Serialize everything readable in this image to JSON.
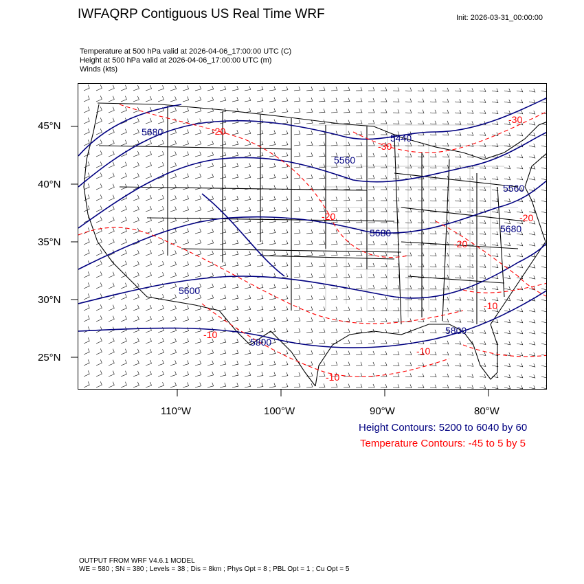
{
  "header": {
    "title": "IWFAQRP Contiguous US Real Time WRF",
    "init": "Init: 2026-03-31_00:00:00"
  },
  "fields": {
    "line1": "Temperature at 500 hPa valid at 2026-04-06_17:00:00 UTC   (C)",
    "line2": "Height at 500 hPa valid at 2026-04-06_17:00:00 UTC   (m)",
    "line3": "Winds   (kts)"
  },
  "map": {
    "lat_labels": [
      "45°N",
      "40°N",
      "35°N",
      "30°N",
      "25°N"
    ],
    "lon_labels": [
      "110°W",
      "100°W",
      "90°W",
      "80°W"
    ],
    "height_labels": [
      "5680",
      "5440",
      "5560",
      "5680",
      "5600",
      "5800",
      "5800",
      "5680",
      "5560"
    ],
    "temp_labels": [
      "-20",
      "-30",
      "-20",
      "-20",
      "-30",
      "-20",
      "-10",
      "-10",
      "-10",
      "-10"
    ],
    "colors": {
      "height": "#000080",
      "temperature": "#ff0000",
      "map_lines": "#000000",
      "barbs": "#000000"
    }
  },
  "legend": {
    "height": "Height Contours: 5200 to 6040 by 60",
    "temperature": "Temperature Contours: -45 to 5 by 5"
  },
  "footer": {
    "line1": "OUTPUT FROM WRF V4.6.1 MODEL",
    "line2": "WE = 580 ; SN = 380 ; Levels = 38 ; Dis = 8km ; Phys Opt = 8 ; PBL Opt = 1 ; Cu Opt = 5"
  }
}
